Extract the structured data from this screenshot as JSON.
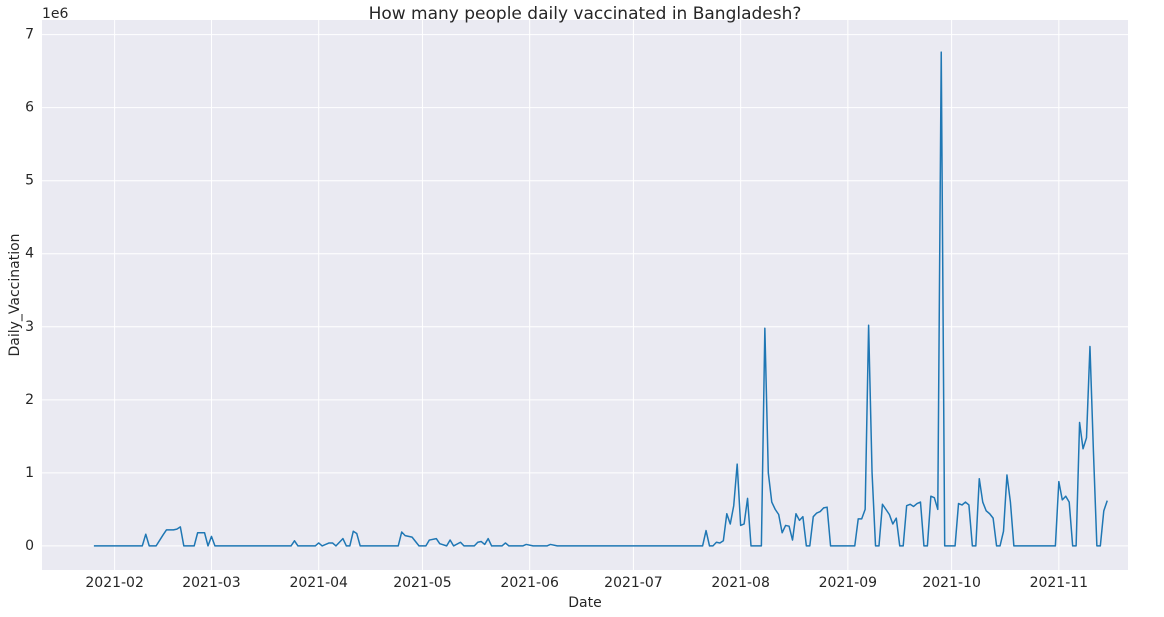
{
  "chart_data": {
    "type": "line",
    "title": "How many people daily vaccinated in Bangladesh?",
    "x_label": "Date",
    "y_label": "Daily_Vaccination",
    "y_offset_label": "1e6",
    "x": [
      "2021-01-26",
      "2021-02-09",
      "2021-02-10",
      "2021-02-11",
      "2021-02-13",
      "2021-02-15",
      "2021-02-16",
      "2021-02-18",
      "2021-02-19",
      "2021-02-20",
      "2021-02-21",
      "2021-02-24",
      "2021-02-25",
      "2021-02-27",
      "2021-02-28",
      "2021-03-01",
      "2021-03-02",
      "2021-03-24",
      "2021-03-25",
      "2021-03-26",
      "2021-03-31",
      "2021-04-01",
      "2021-04-02",
      "2021-04-04",
      "2021-04-05",
      "2021-04-06",
      "2021-04-08",
      "2021-04-09",
      "2021-04-10",
      "2021-04-11",
      "2021-04-12",
      "2021-04-13",
      "2021-04-24",
      "2021-04-25",
      "2021-04-26",
      "2021-04-28",
      "2021-04-30",
      "2021-05-02",
      "2021-05-03",
      "2021-05-05",
      "2021-05-06",
      "2021-05-08",
      "2021-05-09",
      "2021-05-10",
      "2021-05-12",
      "2021-05-13",
      "2021-05-16",
      "2021-05-17",
      "2021-05-18",
      "2021-05-19",
      "2021-05-20",
      "2021-05-21",
      "2021-05-24",
      "2021-05-25",
      "2021-05-26",
      "2021-05-30",
      "2021-05-31",
      "2021-06-02",
      "2021-06-06",
      "2021-06-07",
      "2021-06-09",
      "2021-07-21",
      "2021-07-22",
      "2021-07-23",
      "2021-07-24",
      "2021-07-25",
      "2021-07-26",
      "2021-07-27",
      "2021-07-28",
      "2021-07-29",
      "2021-07-30",
      "2021-07-31",
      "2021-08-01",
      "2021-08-02",
      "2021-08-03",
      "2021-08-04",
      "2021-08-07",
      "2021-08-08",
      "2021-08-09",
      "2021-08-10",
      "2021-08-11",
      "2021-08-12",
      "2021-08-13",
      "2021-08-14",
      "2021-08-15",
      "2021-08-16",
      "2021-08-17",
      "2021-08-18",
      "2021-08-19",
      "2021-08-20",
      "2021-08-21",
      "2021-08-22",
      "2021-08-23",
      "2021-08-24",
      "2021-08-25",
      "2021-08-26",
      "2021-08-27",
      "2021-09-03",
      "2021-09-04",
      "2021-09-05",
      "2021-09-06",
      "2021-09-07",
      "2021-09-08",
      "2021-09-09",
      "2021-09-10",
      "2021-09-11",
      "2021-09-12",
      "2021-09-13",
      "2021-09-14",
      "2021-09-15",
      "2021-09-16",
      "2021-09-17",
      "2021-09-18",
      "2021-09-19",
      "2021-09-20",
      "2021-09-21",
      "2021-09-22",
      "2021-09-23",
      "2021-09-24",
      "2021-09-25",
      "2021-09-26",
      "2021-09-27",
      "2021-09-28",
      "2021-09-29",
      "2021-10-02",
      "2021-10-03",
      "2021-10-04",
      "2021-10-05",
      "2021-10-06",
      "2021-10-07",
      "2021-10-08",
      "2021-10-09",
      "2021-10-10",
      "2021-10-11",
      "2021-10-12",
      "2021-10-13",
      "2021-10-14",
      "2021-10-15",
      "2021-10-16",
      "2021-10-17",
      "2021-10-18",
      "2021-10-19",
      "2021-10-31",
      "2021-11-01",
      "2021-11-02",
      "2021-11-03",
      "2021-11-04",
      "2021-11-05",
      "2021-11-06",
      "2021-11-07",
      "2021-11-08",
      "2021-11-09",
      "2021-11-10",
      "2021-11-11",
      "2021-11-12",
      "2021-11-13",
      "2021-11-14",
      "2021-11-15"
    ],
    "series": [
      {
        "name": "Daily_Vaccination",
        "color": "#1f77b4",
        "values": [
          0,
          0,
          0.16,
          0,
          0,
          0.15,
          0.22,
          0.22,
          0.23,
          0.26,
          0,
          0,
          0.18,
          0.18,
          0,
          0.13,
          0,
          0,
          0.07,
          0,
          0,
          0.04,
          0,
          0.04,
          0.04,
          0,
          0.1,
          0,
          0,
          0.2,
          0.17,
          0,
          0,
          0.19,
          0.14,
          0.12,
          0,
          0,
          0.08,
          0.1,
          0.03,
          0,
          0.08,
          0,
          0.05,
          0,
          0,
          0.05,
          0.06,
          0.02,
          0.1,
          0,
          0,
          0.04,
          0,
          0,
          0.02,
          0,
          0,
          0.02,
          0,
          0,
          0.21,
          0,
          0,
          0.05,
          0.04,
          0.07,
          0.44,
          0.3,
          0.55,
          1.12,
          0.28,
          0.3,
          0.65,
          0,
          0,
          2.98,
          1.0,
          0.6,
          0.5,
          0.43,
          0.18,
          0.28,
          0.27,
          0.08,
          0.44,
          0.35,
          0.4,
          0,
          0,
          0.4,
          0.45,
          0.47,
          0.52,
          0.53,
          0,
          0,
          0.37,
          0.37,
          0.5,
          3.02,
          1.0,
          0,
          0,
          0.57,
          0.5,
          0.43,
          0.3,
          0.38,
          0,
          0,
          0.55,
          0.57,
          0.54,
          0.58,
          0.6,
          0,
          0,
          0.68,
          0.66,
          0.5,
          6.76,
          0,
          0,
          0.58,
          0.56,
          0.6,
          0.56,
          0,
          0,
          0.92,
          0.6,
          0.48,
          0.44,
          0.38,
          0,
          0,
          0.2,
          0.97,
          0.6,
          0,
          0,
          0.88,
          0.63,
          0.68,
          0.6,
          0,
          0,
          1.69,
          1.33,
          1.48,
          2.73,
          1.3,
          0,
          0,
          0.48,
          0.62
        ]
      }
    ],
    "xlim": [
      "2021-01-11",
      "2021-11-21"
    ],
    "xticks": [
      {
        "value": "2021-02-01",
        "label": "2021-02"
      },
      {
        "value": "2021-03-01",
        "label": "2021-03"
      },
      {
        "value": "2021-04-01",
        "label": "2021-04"
      },
      {
        "value": "2021-05-01",
        "label": "2021-05"
      },
      {
        "value": "2021-06-01",
        "label": "2021-06"
      },
      {
        "value": "2021-07-01",
        "label": "2021-07"
      },
      {
        "value": "2021-08-01",
        "label": "2021-08"
      },
      {
        "value": "2021-09-01",
        "label": "2021-09"
      },
      {
        "value": "2021-10-01",
        "label": "2021-10"
      },
      {
        "value": "2021-11-01",
        "label": "2021-11"
      }
    ],
    "ylim": [
      -0.33,
      7.2
    ],
    "yticks": [
      0,
      1,
      2,
      3,
      4,
      5,
      6,
      7
    ],
    "grid": true
  }
}
